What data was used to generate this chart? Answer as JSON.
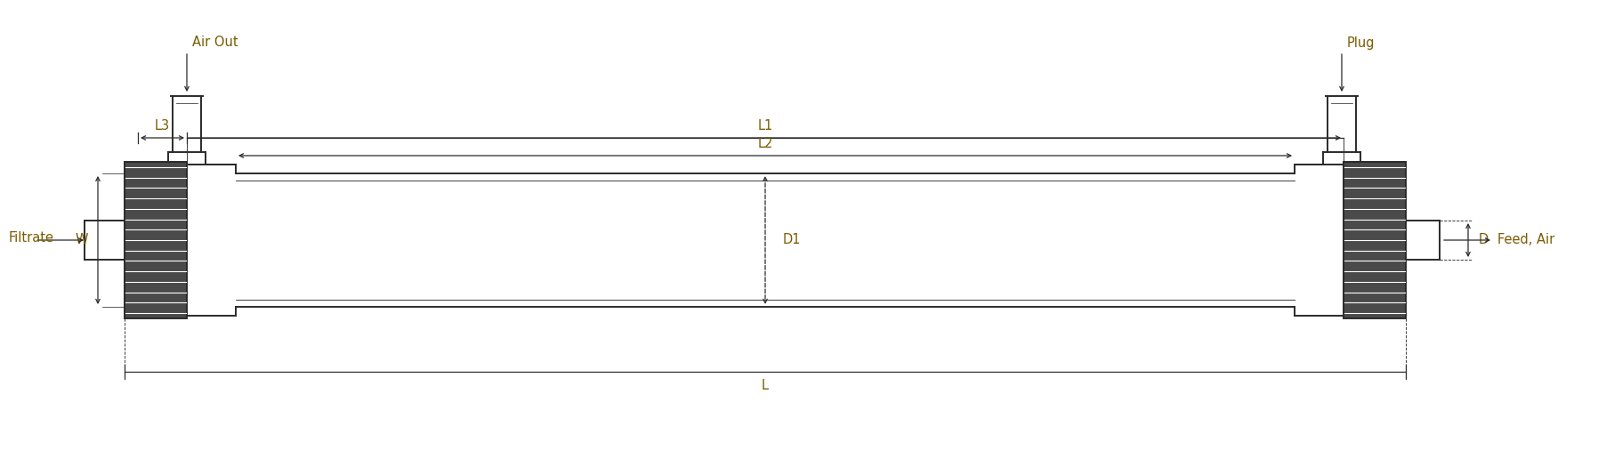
{
  "bg_color": "#ffffff",
  "line_color": "#2a2a2a",
  "label_color": "#7B5B00",
  "figsize": [
    17.96,
    5.24
  ],
  "dpi": 100,
  "labels": {
    "air_out": "Air Out",
    "plug": "Plug",
    "filtrate": "Filtrate",
    "feed_air": "Feed, Air",
    "L1": "L1",
    "L2": "L2",
    "L3": "L3",
    "L": "L",
    "D1": "D1",
    "D": "D",
    "W": "W"
  }
}
